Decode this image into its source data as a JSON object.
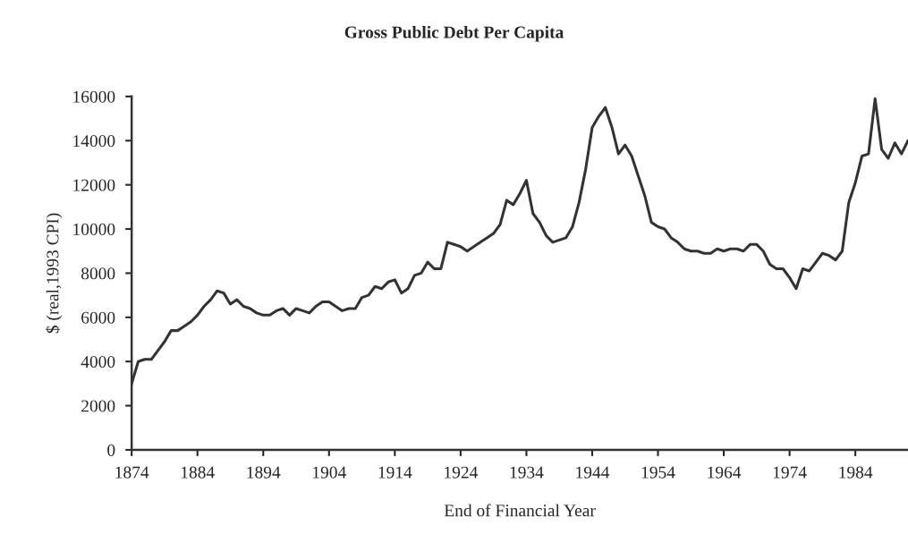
{
  "chart_data": {
    "type": "line",
    "title": "Gross Public Debt Per Capita",
    "xlabel": "End of Financial Year",
    "ylabel": "$ (real,1993 CPI)",
    "x": [
      1874,
      1875,
      1876,
      1877,
      1878,
      1879,
      1880,
      1881,
      1882,
      1883,
      1884,
      1885,
      1886,
      1887,
      1888,
      1889,
      1890,
      1891,
      1892,
      1893,
      1894,
      1895,
      1896,
      1897,
      1898,
      1899,
      1900,
      1901,
      1902,
      1903,
      1904,
      1905,
      1906,
      1907,
      1908,
      1909,
      1910,
      1911,
      1912,
      1913,
      1914,
      1915,
      1916,
      1917,
      1918,
      1919,
      1920,
      1921,
      1922,
      1923,
      1924,
      1925,
      1926,
      1927,
      1928,
      1929,
      1930,
      1931,
      1932,
      1933,
      1934,
      1935,
      1936,
      1937,
      1938,
      1939,
      1940,
      1941,
      1942,
      1943,
      1944,
      1945,
      1946,
      1947,
      1948,
      1949,
      1950,
      1951,
      1952,
      1953,
      1954,
      1955,
      1956,
      1957,
      1958,
      1959,
      1960,
      1961,
      1962,
      1963,
      1964,
      1965,
      1966,
      1967,
      1968,
      1969,
      1970,
      1971,
      1972,
      1973,
      1974,
      1975,
      1976,
      1977,
      1978,
      1979,
      1980,
      1981,
      1982,
      1983,
      1984,
      1985,
      1986,
      1987,
      1988,
      1989,
      1990,
      1991,
      1992
    ],
    "series": [
      {
        "color": "#333333",
        "values": [
          3000,
          4000,
          4100,
          4100,
          4500,
          4900,
          5400,
          5400,
          5600,
          5800,
          6100,
          6500,
          6800,
          7200,
          7100,
          6600,
          6800,
          6500,
          6400,
          6200,
          6100,
          6100,
          6300,
          6400,
          6100,
          6400,
          6300,
          6200,
          6500,
          6700,
          6700,
          6500,
          6300,
          6400,
          6400,
          6900,
          7000,
          7400,
          7300,
          7600,
          7700,
          7100,
          7300,
          7900,
          8000,
          8500,
          8200,
          8200,
          9400,
          9300,
          9200,
          9000,
          9200,
          9400,
          9600,
          9800,
          10200,
          11300,
          11100,
          11600,
          12200,
          10700,
          10300,
          9700,
          9400,
          9500,
          9600,
          10100,
          11200,
          12700,
          14600,
          15100,
          15500,
          14600,
          13400,
          13800,
          13300,
          12400,
          11500,
          10300,
          10100,
          10000,
          9600,
          9400,
          9100,
          9000,
          9000,
          8900,
          8900,
          9100,
          9000,
          9100,
          9100,
          9000,
          9300,
          9300,
          9000,
          8400,
          8200,
          8200,
          7800,
          7300,
          8200,
          8100,
          8500,
          8900,
          8800,
          8600,
          9000,
          11200,
          12100,
          13300,
          13400,
          15900,
          13600,
          13200,
          13900,
          13400,
          14000
        ]
      }
    ],
    "xlim": [
      1874,
      1992
    ],
    "xticks": [
      1874,
      1884,
      1894,
      1904,
      1914,
      1924,
      1934,
      1944,
      1954,
      1964,
      1974,
      1984
    ],
    "ylim": [
      0,
      16000
    ],
    "yticks": [
      0,
      2000,
      4000,
      6000,
      8000,
      10000,
      12000,
      14000,
      16000
    ],
    "grid": false,
    "legend": false,
    "marker": "none",
    "line_style": "solid"
  }
}
